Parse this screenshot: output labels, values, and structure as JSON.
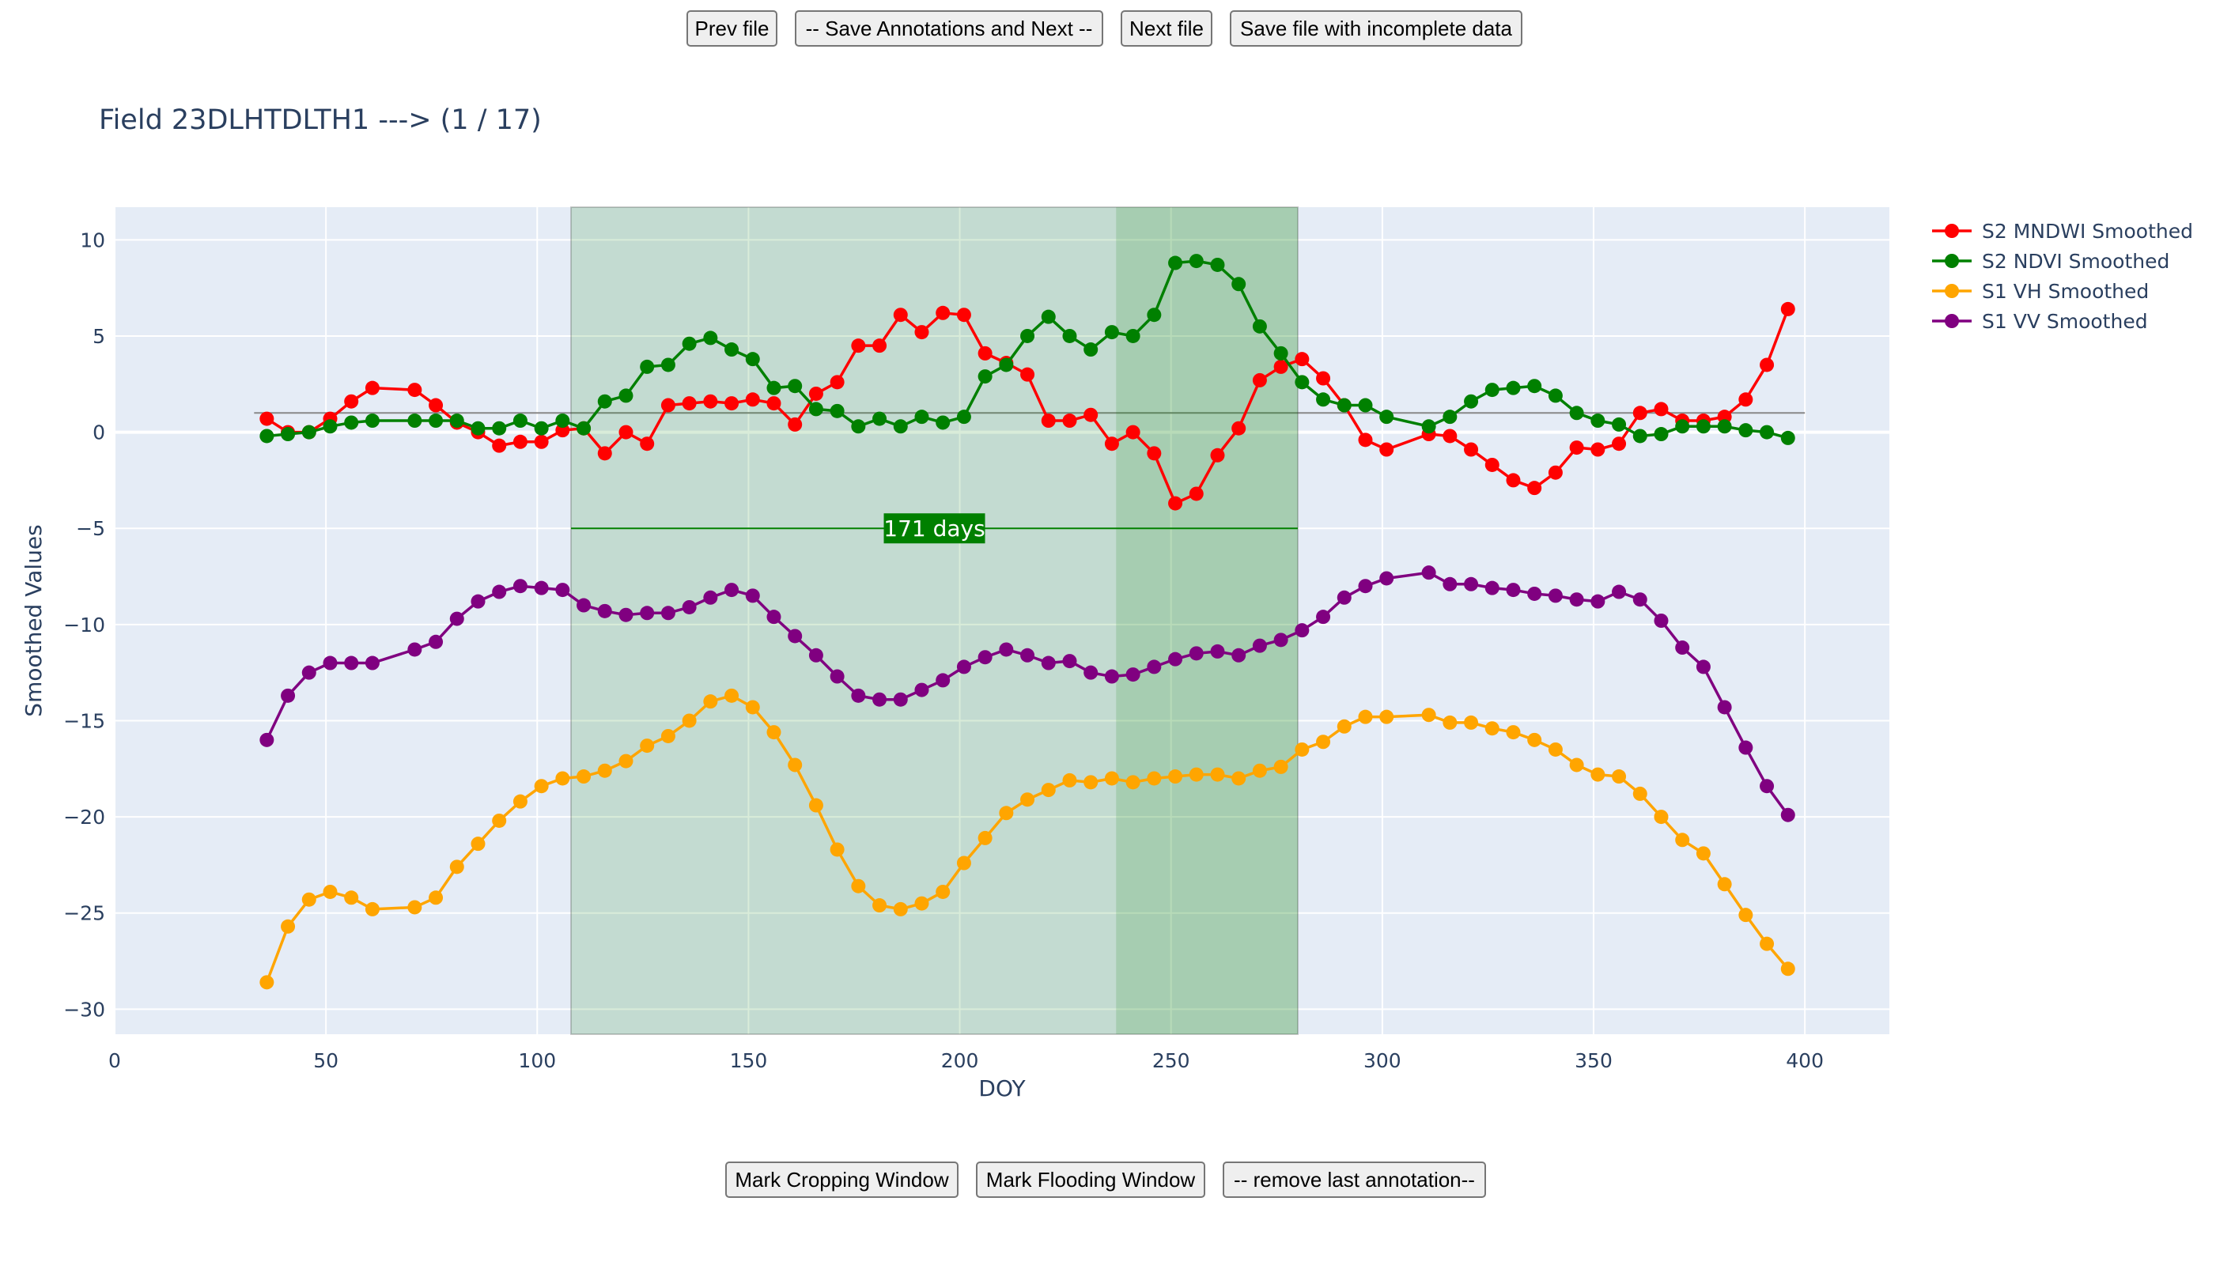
{
  "toolbar": {
    "prev_label": "Prev file",
    "save_next_label": "-- Save Annotations and Next --",
    "next_label": "Next file",
    "save_incomplete_label": "Save file with incomplete data"
  },
  "bottom_bar": {
    "crop_label": "Mark Cropping Window",
    "flood_label": "Mark Flooding Window",
    "remove_label": "-- remove last annotation--"
  },
  "chart_data": {
    "type": "line",
    "title": "Field 23DLHTDLTH1 ---> (1 / 17)",
    "xlabel": "DOY",
    "ylabel": "Smoothed Values",
    "xlim": [
      0,
      420
    ],
    "ylim": [
      -31.3,
      11.7
    ],
    "xticks": [
      0,
      50,
      100,
      150,
      200,
      250,
      300,
      350,
      400
    ],
    "yticks": [
      10,
      5,
      0,
      -5,
      -10,
      -15,
      -20,
      -25,
      -30
    ],
    "grid": true,
    "legend_position": "top-right",
    "plot_bg": "#e5ecf6",
    "cropping_window": {
      "start": 108,
      "end": 280,
      "color": "#008000",
      "label": "171 days",
      "label_y": -5
    },
    "flooding_window": {
      "start": 237,
      "end": 280,
      "color": "#008000"
    },
    "threshold_line": {
      "y": 1,
      "x0": 33,
      "x1": 400
    },
    "series": [
      {
        "name": "S2 MNDWI Smoothed",
        "color": "#ff0000",
        "x": [
          36,
          41,
          46,
          51,
          56,
          61,
          71,
          76,
          81,
          86,
          91,
          96,
          101,
          106,
          111,
          116,
          121,
          126,
          131,
          136,
          141,
          146,
          151,
          156,
          161,
          166,
          171,
          176,
          181,
          186,
          191,
          196,
          201,
          206,
          211,
          216,
          221,
          226,
          231,
          236,
          241,
          246,
          251,
          256,
          261,
          266,
          271,
          276,
          281,
          286,
          291,
          296,
          301,
          311,
          316,
          321,
          326,
          331,
          336,
          341,
          346,
          351,
          356,
          361,
          366,
          371,
          376,
          381,
          386,
          391,
          396
        ],
        "y": [
          0.7,
          0.0,
          0.0,
          0.7,
          1.6,
          2.3,
          2.2,
          1.4,
          0.5,
          0.0,
          -0.7,
          -0.5,
          -0.5,
          0.1,
          0.2,
          -1.1,
          0.0,
          -0.6,
          1.4,
          1.5,
          1.6,
          1.5,
          1.7,
          1.5,
          0.4,
          2.0,
          2.6,
          4.5,
          4.5,
          6.1,
          5.2,
          6.2,
          6.1,
          4.1,
          3.6,
          3.0,
          0.6,
          0.6,
          0.9,
          -0.6,
          0.0,
          -1.1,
          -3.7,
          -3.2,
          -1.2,
          0.2,
          2.7,
          3.4,
          3.8,
          2.8,
          1.4,
          -0.4,
          -0.9,
          -0.1,
          -0.2,
          -0.9,
          -1.7,
          -2.5,
          -2.9,
          -2.1,
          -0.8,
          -0.9,
          -0.6,
          1.0,
          1.2,
          0.6,
          0.6,
          0.8,
          1.7,
          3.5,
          6.4
        ]
      },
      {
        "name": "S2 NDVI Smoothed",
        "color": "#008000",
        "x": [
          36,
          41,
          46,
          51,
          56,
          61,
          71,
          76,
          81,
          86,
          91,
          96,
          101,
          106,
          111,
          116,
          121,
          126,
          131,
          136,
          141,
          146,
          151,
          156,
          161,
          166,
          171,
          176,
          181,
          186,
          191,
          196,
          201,
          206,
          211,
          216,
          221,
          226,
          231,
          236,
          241,
          246,
          251,
          256,
          261,
          266,
          271,
          276,
          281,
          286,
          291,
          296,
          301,
          311,
          316,
          321,
          326,
          331,
          336,
          341,
          346,
          351,
          356,
          361,
          366,
          371,
          376,
          381,
          386,
          391,
          396
        ],
        "y": [
          -0.2,
          -0.1,
          0.0,
          0.3,
          0.5,
          0.6,
          0.6,
          0.6,
          0.6,
          0.2,
          0.2,
          0.6,
          0.2,
          0.6,
          0.2,
          1.6,
          1.9,
          3.4,
          3.5,
          4.6,
          4.9,
          4.3,
          3.8,
          2.3,
          2.4,
          1.2,
          1.1,
          0.3,
          0.7,
          0.3,
          0.8,
          0.5,
          0.8,
          2.9,
          3.5,
          5.0,
          6.0,
          5.0,
          4.3,
          5.2,
          5.0,
          6.1,
          8.8,
          8.9,
          8.7,
          7.7,
          5.5,
          4.1,
          2.6,
          1.7,
          1.4,
          1.4,
          0.8,
          0.3,
          0.8,
          1.6,
          2.2,
          2.3,
          2.4,
          1.9,
          1.0,
          0.6,
          0.4,
          -0.2,
          -0.1,
          0.3,
          0.3,
          0.3,
          0.1,
          0.0,
          -0.3
        ]
      },
      {
        "name": "S1 VH Smoothed",
        "color": "#ffa500",
        "x": [
          36,
          41,
          46,
          51,
          56,
          61,
          71,
          76,
          81,
          86,
          91,
          96,
          101,
          106,
          111,
          116,
          121,
          126,
          131,
          136,
          141,
          146,
          151,
          156,
          161,
          166,
          171,
          176,
          181,
          186,
          191,
          196,
          201,
          206,
          211,
          216,
          221,
          226,
          231,
          236,
          241,
          246,
          251,
          256,
          261,
          266,
          271,
          276,
          281,
          286,
          291,
          296,
          301,
          311,
          316,
          321,
          326,
          331,
          336,
          341,
          346,
          351,
          356,
          361,
          366,
          371,
          376,
          381,
          386,
          391,
          396
        ],
        "y": [
          -28.6,
          -25.7,
          -24.3,
          -23.9,
          -24.2,
          -24.8,
          -24.7,
          -24.2,
          -22.6,
          -21.4,
          -20.2,
          -19.2,
          -18.4,
          -18.0,
          -17.9,
          -17.6,
          -17.1,
          -16.3,
          -15.8,
          -15.0,
          -14.0,
          -13.7,
          -14.3,
          -15.6,
          -17.3,
          -19.4,
          -21.7,
          -23.6,
          -24.6,
          -24.8,
          -24.5,
          -23.9,
          -22.4,
          -21.1,
          -19.8,
          -19.1,
          -18.6,
          -18.1,
          -18.2,
          -18.0,
          -18.2,
          -18.0,
          -17.9,
          -17.8,
          -17.8,
          -18.0,
          -17.6,
          -17.4,
          -16.5,
          -16.1,
          -15.3,
          -14.8,
          -14.8,
          -14.7,
          -15.1,
          -15.1,
          -15.4,
          -15.6,
          -16.0,
          -16.5,
          -17.3,
          -17.8,
          -17.9,
          -18.8,
          -20.0,
          -21.2,
          -21.9,
          -23.5,
          -25.1,
          -26.6,
          -27.9
        ]
      },
      {
        "name": "S1 VV Smoothed",
        "color": "#800080",
        "x": [
          36,
          41,
          46,
          51,
          56,
          61,
          71,
          76,
          81,
          86,
          91,
          96,
          101,
          106,
          111,
          116,
          121,
          126,
          131,
          136,
          141,
          146,
          151,
          156,
          161,
          166,
          171,
          176,
          181,
          186,
          191,
          196,
          201,
          206,
          211,
          216,
          221,
          226,
          231,
          236,
          241,
          246,
          251,
          256,
          261,
          266,
          271,
          276,
          281,
          286,
          291,
          296,
          301,
          311,
          316,
          321,
          326,
          331,
          336,
          341,
          346,
          351,
          356,
          361,
          366,
          371,
          376,
          381,
          386,
          391,
          396
        ],
        "y": [
          -16.0,
          -13.7,
          -12.5,
          -12.0,
          -12.0,
          -12.0,
          -11.3,
          -10.9,
          -9.7,
          -8.8,
          -8.3,
          -8.0,
          -8.1,
          -8.2,
          -9.0,
          -9.3,
          -9.5,
          -9.4,
          -9.4,
          -9.1,
          -8.6,
          -8.2,
          -8.5,
          -9.6,
          -10.6,
          -11.6,
          -12.7,
          -13.7,
          -13.9,
          -13.9,
          -13.4,
          -12.9,
          -12.2,
          -11.7,
          -11.3,
          -11.6,
          -12.0,
          -11.9,
          -12.5,
          -12.7,
          -12.6,
          -12.2,
          -11.8,
          -11.5,
          -11.4,
          -11.6,
          -11.1,
          -10.8,
          -10.3,
          -9.6,
          -8.6,
          -8.0,
          -7.6,
          -7.3,
          -7.9,
          -7.9,
          -8.1,
          -8.2,
          -8.4,
          -8.5,
          -8.7,
          -8.8,
          -8.3,
          -8.7,
          -9.8,
          -11.2,
          -12.2,
          -14.3,
          -16.4,
          -18.4,
          -19.9
        ]
      }
    ]
  }
}
